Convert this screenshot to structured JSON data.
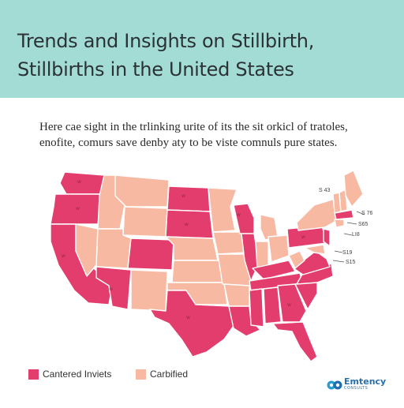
{
  "header": {
    "title_line1": "Trends and Insights on Stillbirth,",
    "title_line2": "Stillbirths in the United States",
    "background_color": "#a3dcd4"
  },
  "subtitle": {
    "line1": "Here cae sight in the trlinking urite of its the sit orkicl of tratoles,",
    "line2": "enofite, comurs save denby aty to be viste comnuls pure states."
  },
  "legend": {
    "items": [
      {
        "label": "Cantered Inviets",
        "color": "#e23d6d"
      },
      {
        "label": "Carbified",
        "color": "#f7b9a2"
      }
    ]
  },
  "map": {
    "colors": {
      "centered": "#e23d6d",
      "carbified": "#f7b9a2",
      "border": "#ffffff"
    },
    "callouts": [
      "S 43",
      "S 76",
      "S65",
      "LI8",
      "S19",
      "S15"
    ]
  },
  "logo": {
    "name": "Emtency",
    "tagline": "CONSULTS",
    "icon": "infinity-logo-icon"
  }
}
